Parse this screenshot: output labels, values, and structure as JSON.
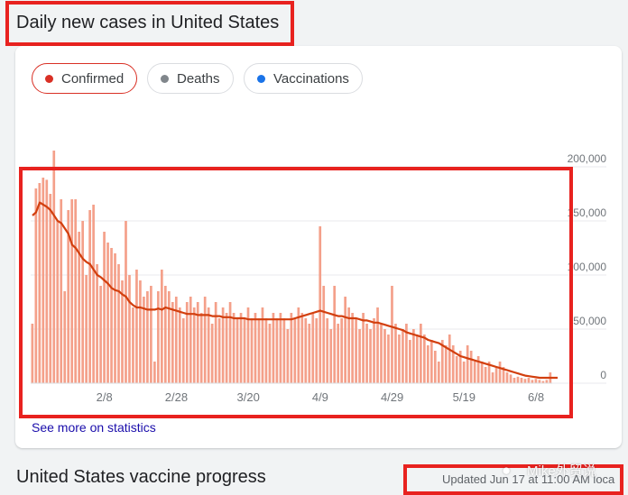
{
  "header": {
    "title": "Daily new cases in United States"
  },
  "tabs": [
    {
      "label": "Confirmed",
      "color": "#d93025",
      "active": true
    },
    {
      "label": "Deaths",
      "color": "#80868b",
      "active": false
    },
    {
      "label": "Vaccinations",
      "color": "#1a73e8",
      "active": false
    }
  ],
  "links": {
    "see_more": "See more on statistics"
  },
  "footer": {
    "section_title": "United States vaccine progress",
    "updated": "Updated Jun 17 at 11:00 AM loca"
  },
  "watermark": {
    "icon": "wechat-icon",
    "text": "Mike外贸说"
  },
  "chart_data": {
    "type": "bar",
    "bar_color": "#f4a08a",
    "line_color": "#d23f0e",
    "x_tick_labels": [
      "2/8",
      "2/28",
      "3/20",
      "4/9",
      "4/29",
      "5/19",
      "6/8"
    ],
    "x_tick_indices": [
      20,
      40,
      60,
      80,
      100,
      120,
      140
    ],
    "y_tick_labels": [
      "0",
      "50,000",
      "100,000",
      "150,000",
      "200,000"
    ],
    "ylim": [
      0,
      200000
    ],
    "grid": true,
    "values": [
      55000,
      180000,
      185000,
      190000,
      188000,
      175000,
      215000,
      150000,
      170000,
      85000,
      160000,
      170000,
      170000,
      140000,
      150000,
      100000,
      160000,
      165000,
      110000,
      90000,
      140000,
      130000,
      125000,
      120000,
      110000,
      95000,
      150000,
      100000,
      70000,
      105000,
      95000,
      80000,
      85000,
      90000,
      20000,
      85000,
      105000,
      90000,
      85000,
      75000,
      80000,
      70000,
      60000,
      75000,
      80000,
      70000,
      75000,
      65000,
      80000,
      70000,
      55000,
      75000,
      60000,
      70000,
      65000,
      75000,
      65000,
      60000,
      65000,
      60000,
      70000,
      60000,
      65000,
      60000,
      70000,
      60000,
      55000,
      65000,
      60000,
      65000,
      60000,
      50000,
      65000,
      60000,
      70000,
      65000,
      60000,
      55000,
      65000,
      60000,
      145000,
      90000,
      60000,
      50000,
      90000,
      55000,
      60000,
      80000,
      70000,
      65000,
      60000,
      50000,
      65000,
      55000,
      50000,
      60000,
      70000,
      55000,
      50000,
      45000,
      90000,
      55000,
      45000,
      50000,
      55000,
      40000,
      50000,
      45000,
      55000,
      45000,
      35000,
      40000,
      30000,
      20000,
      40000,
      35000,
      45000,
      35000,
      25000,
      30000,
      20000,
      35000,
      30000,
      20000,
      25000,
      20000,
      15000,
      20000,
      10000,
      15000,
      20000,
      15000,
      10000,
      8000,
      5000,
      6000,
      5000,
      4000,
      5000,
      3000,
      4000,
      3000,
      2000,
      3000,
      10000
    ],
    "rolling_avg": [
      155000,
      158000,
      167000,
      165000,
      163000,
      160000,
      155000,
      150000,
      148000,
      143000,
      138000,
      128000,
      125000,
      120000,
      115000,
      112000,
      110000,
      105000,
      100000,
      98000,
      95000,
      92000,
      88000,
      86000,
      85000,
      82000,
      80000,
      75000,
      72000,
      70000,
      70000,
      69000,
      68000,
      68000,
      68000,
      69000,
      68000,
      70000,
      69000,
      68000,
      67000,
      66000,
      65000,
      64000,
      64000,
      64000,
      63000,
      63000,
      63000,
      63000,
      62000,
      62000,
      62000,
      61000,
      61000,
      61000,
      60000,
      60000,
      60000,
      60000,
      59000,
      59000,
      59000,
      59000,
      59000,
      59000,
      59000,
      59000,
      59000,
      59000,
      59000,
      59000,
      59000,
      60000,
      61000,
      62000,
      63000,
      64000,
      65000,
      66000,
      67000,
      66000,
      65000,
      64000,
      63000,
      62000,
      62000,
      61000,
      60000,
      60000,
      60000,
      59000,
      58000,
      58000,
      57000,
      56000,
      56000,
      55000,
      54000,
      53000,
      52000,
      51000,
      50000,
      49000,
      47000,
      46000,
      45000,
      44000,
      43000,
      42000,
      40000,
      39000,
      38000,
      37000,
      35000,
      33000,
      31000,
      29000,
      27000,
      25000,
      24000,
      23000,
      22000,
      21000,
      20000,
      19000,
      18000,
      17000,
      16000,
      15000,
      14000,
      13000,
      12000,
      11000,
      10000,
      9000,
      8000,
      7000,
      6500,
      6000,
      5500,
      5000,
      5000,
      5000,
      5000,
      5000,
      5000
    ]
  }
}
